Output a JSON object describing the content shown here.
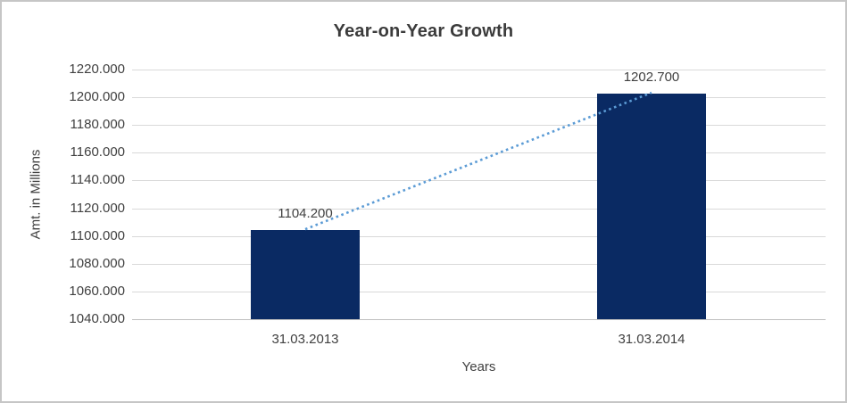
{
  "chart_data": {
    "type": "bar",
    "title": "Year-on-Year Growth",
    "xlabel": "Years",
    "ylabel": "Amt. in Millions",
    "categories": [
      "31.03.2013",
      "31.03.2014"
    ],
    "values": [
      1104.2,
      1202.7
    ],
    "data_labels": [
      "1104.200",
      "1202.700"
    ],
    "ylim": [
      1040,
      1220
    ],
    "ytick_step": 20,
    "yticks": [
      {
        "value": 1220,
        "label": "1220.000"
      },
      {
        "value": 1200,
        "label": "1200.000"
      },
      {
        "value": 1180,
        "label": "1180.000"
      },
      {
        "value": 1160,
        "label": "1160.000"
      },
      {
        "value": 1140,
        "label": "1140.000"
      },
      {
        "value": 1120,
        "label": "1120.000"
      },
      {
        "value": 1100,
        "label": "1100.000"
      },
      {
        "value": 1080,
        "label": "1080.000"
      },
      {
        "value": 1060,
        "label": "1060.000"
      },
      {
        "value": 1040,
        "label": "1040.000"
      }
    ],
    "grid": true,
    "legend_position": "none",
    "trendline": {
      "type": "linear",
      "style": "dotted"
    }
  },
  "colors": {
    "bar": "#0a2a63",
    "trendline": "#5b9bd5",
    "gridline": "#d9d9d9",
    "axis_line": "#bfbfbf",
    "text": "#404040",
    "title": "#3b3b3b",
    "border": "#c6c6c6"
  }
}
